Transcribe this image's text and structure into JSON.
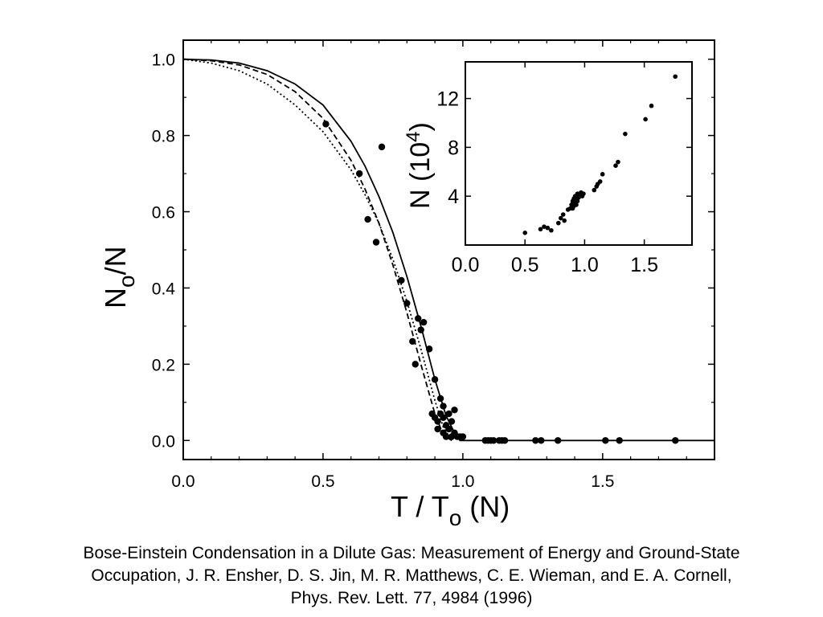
{
  "chart_data": [
    {
      "type": "scatter",
      "title": "",
      "xlabel": "T / T",
      "xlabel_subscript": "o",
      "xlabel_suffix": " (N)",
      "ylabel": "N",
      "ylabel_subscript": "o",
      "ylabel_suffix": "/N",
      "xlim": [
        0.0,
        1.9
      ],
      "ylim": [
        -0.05,
        1.05
      ],
      "x_ticks": [
        "0.0",
        "0.5",
        "1.0",
        "1.5"
      ],
      "y_ticks": [
        "0.0",
        "0.2",
        "0.4",
        "0.6",
        "0.8",
        "1.0"
      ],
      "grid": false,
      "series": [
        {
          "style": "solid-line",
          "x": [
            0.0,
            0.1,
            0.2,
            0.3,
            0.4,
            0.5,
            0.6,
            0.65,
            0.7,
            0.75,
            0.8,
            0.85,
            0.9,
            0.94,
            0.97,
            0.99,
            1.0,
            1.9
          ],
          "y": [
            1.0,
            0.998,
            0.99,
            0.97,
            0.935,
            0.88,
            0.785,
            0.72,
            0.64,
            0.545,
            0.43,
            0.3,
            0.16,
            0.065,
            0.02,
            0.0,
            0.0,
            0.0
          ]
        },
        {
          "style": "dashed-line",
          "x": [
            0.0,
            0.1,
            0.2,
            0.3,
            0.4,
            0.5,
            0.6,
            0.65,
            0.7,
            0.75,
            0.8,
            0.85,
            0.9,
            0.93,
            0.96
          ],
          "y": [
            1.0,
            0.996,
            0.985,
            0.96,
            0.915,
            0.845,
            0.735,
            0.66,
            0.57,
            0.46,
            0.335,
            0.2,
            0.07,
            0.015,
            0.0
          ]
        },
        {
          "style": "dotted-line",
          "x": [
            0.0,
            0.1,
            0.2,
            0.3,
            0.4,
            0.5,
            0.6,
            0.65,
            0.7,
            0.75,
            0.8,
            0.85,
            0.9,
            0.93,
            0.96
          ],
          "y": [
            1.0,
            0.99,
            0.97,
            0.935,
            0.88,
            0.81,
            0.71,
            0.645,
            0.57,
            0.475,
            0.365,
            0.24,
            0.105,
            0.035,
            0.0
          ]
        },
        {
          "style": "points",
          "x": [
            0.51,
            0.63,
            0.66,
            0.69,
            0.71,
            0.78,
            0.8,
            0.82,
            0.83,
            0.84,
            0.85,
            0.86,
            0.88,
            0.89,
            0.9,
            0.9,
            0.91,
            0.91,
            0.92,
            0.92,
            0.93,
            0.93,
            0.93,
            0.94,
            0.94,
            0.95,
            0.95,
            0.96,
            0.96,
            0.97,
            0.97,
            0.98,
            0.99,
            1.0,
            1.08,
            1.09,
            1.1,
            1.11,
            1.13,
            1.14,
            1.15,
            1.26,
            1.28,
            1.34,
            1.51,
            1.56,
            1.76
          ],
          "y": [
            0.83,
            0.7,
            0.58,
            0.52,
            0.77,
            0.42,
            0.36,
            0.26,
            0.2,
            0.32,
            0.29,
            0.31,
            0.24,
            0.07,
            0.06,
            0.16,
            0.05,
            0.03,
            0.11,
            0.07,
            0.06,
            0.02,
            0.09,
            0.04,
            0.01,
            0.07,
            0.03,
            0.05,
            0.01,
            0.02,
            0.08,
            0.01,
            0.01,
            0.01,
            0.0,
            0.0,
            0.0,
            0.0,
            0.0,
            0.0,
            0.0,
            0.0,
            0.0,
            0.0,
            0.0,
            0.0,
            0.0
          ]
        }
      ]
    },
    {
      "type": "scatter",
      "title": "",
      "xlabel": "",
      "ylabel": "N (10",
      "ylabel_superscript": "4",
      "ylabel_suffix": ")",
      "xlim": [
        0.0,
        1.9
      ],
      "ylim": [
        0.0,
        15.0
      ],
      "x_ticks": [
        "0.0",
        "0.5",
        "1.0",
        "1.5"
      ],
      "y_ticks": [
        "4",
        "8",
        "12"
      ],
      "grid": false,
      "series": [
        {
          "style": "points",
          "x": [
            0.5,
            0.63,
            0.66,
            0.69,
            0.72,
            0.78,
            0.8,
            0.82,
            0.83,
            0.86,
            0.88,
            0.89,
            0.9,
            0.9,
            0.91,
            0.91,
            0.92,
            0.92,
            0.93,
            0.93,
            0.94,
            0.94,
            0.95,
            0.96,
            0.97,
            0.98,
            0.99,
            1.08,
            1.1,
            1.11,
            1.13,
            1.15,
            1.26,
            1.28,
            1.34,
            1.51,
            1.56,
            1.76
          ],
          "y": [
            1.0,
            1.3,
            1.5,
            1.4,
            1.2,
            1.8,
            2.2,
            2.5,
            2.0,
            2.9,
            3.0,
            3.3,
            3.0,
            3.6,
            3.8,
            3.2,
            3.5,
            4.0,
            3.3,
            3.7,
            4.2,
            3.6,
            3.9,
            4.1,
            4.3,
            4.0,
            4.2,
            4.5,
            4.8,
            5.0,
            5.2,
            5.8,
            6.5,
            6.8,
            9.1,
            10.3,
            11.4,
            13.8
          ]
        }
      ]
    }
  ],
  "caption": {
    "line1": "Bose-Einstein Condensation in a Dilute Gas: Measurement of Energy and Ground-State",
    "line2": "Occupation, J. R. Ensher, D. S. Jin, M. R. Matthews, C. E. Wieman, and E. A. Cornell,",
    "line3": "Phys. Rev. Lett. 77, 4984 (1996)"
  }
}
